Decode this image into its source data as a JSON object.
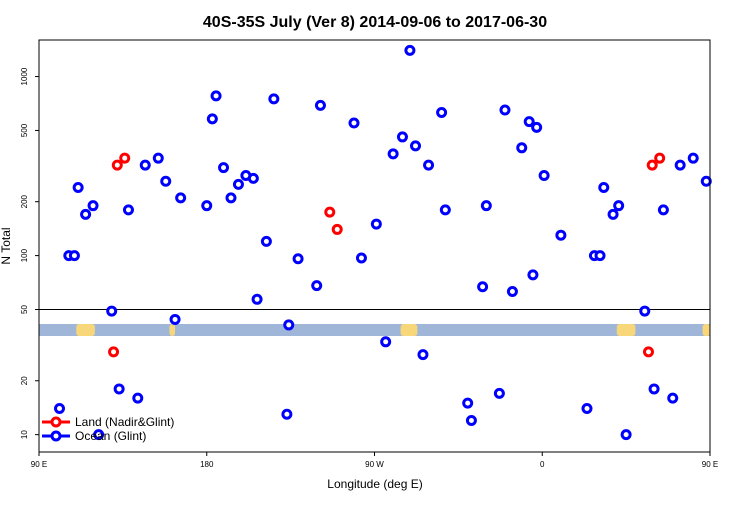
{
  "chart_data": {
    "type": "scatter",
    "title": "40S-35S July (Ver 8)   2014-09-06 to 2017-06-30",
    "xlabel": "Longitude (deg E)",
    "ylabel": "N Total",
    "xlim": [
      90,
      450
    ],
    "x_ticks": [
      {
        "value": 90,
        "label": "90 E"
      },
      {
        "value": 180,
        "label": "180"
      },
      {
        "value": 270,
        "label": "90 W"
      },
      {
        "value": 360,
        "label": "0"
      },
      {
        "value": 450,
        "label": "90 E"
      }
    ],
    "y_scale": "log",
    "y_ticks": [
      {
        "value": 10,
        "label": "10"
      },
      {
        "value": 20,
        "label": "20"
      },
      {
        "value": 50,
        "label": "50"
      },
      {
        "value": 100,
        "label": "100"
      },
      {
        "value": 200,
        "label": "200"
      },
      {
        "value": 500,
        "label": "500"
      },
      {
        "value": 1000,
        "label": "1000"
      }
    ],
    "threshold_line": 50,
    "grid": false,
    "legend_position": "bottom-left",
    "series": [
      {
        "name": "Land (Nadir&Glint)",
        "color": "#ff0000",
        "points": [
          {
            "x": 132,
            "y": 320
          },
          {
            "x": 136,
            "y": 350
          },
          {
            "x": 130,
            "y": 29
          },
          {
            "x": 246,
            "y": 175
          },
          {
            "x": 250,
            "y": 140
          },
          {
            "x": 419,
            "y": 320
          },
          {
            "x": 423,
            "y": 350
          },
          {
            "x": 417,
            "y": 29
          }
        ]
      },
      {
        "name": "Ocean (Glint)",
        "color": "#0000ff",
        "points": [
          {
            "x": 101,
            "y": 14
          },
          {
            "x": 106,
            "y": 100
          },
          {
            "x": 109,
            "y": 100
          },
          {
            "x": 111,
            "y": 240
          },
          {
            "x": 115,
            "y": 170
          },
          {
            "x": 119,
            "y": 190
          },
          {
            "x": 122,
            "y": 10
          },
          {
            "x": 129,
            "y": 49
          },
          {
            "x": 133,
            "y": 18
          },
          {
            "x": 138,
            "y": 180
          },
          {
            "x": 143,
            "y": 16
          },
          {
            "x": 147,
            "y": 320
          },
          {
            "x": 154,
            "y": 350
          },
          {
            "x": 158,
            "y": 260
          },
          {
            "x": 163,
            "y": 44
          },
          {
            "x": 166,
            "y": 210
          },
          {
            "x": 180,
            "y": 190
          },
          {
            "x": 183,
            "y": 580
          },
          {
            "x": 185,
            "y": 780
          },
          {
            "x": 189,
            "y": 310
          },
          {
            "x": 193,
            "y": 210
          },
          {
            "x": 197,
            "y": 250
          },
          {
            "x": 201,
            "y": 280
          },
          {
            "x": 205,
            "y": 270
          },
          {
            "x": 207,
            "y": 57
          },
          {
            "x": 212,
            "y": 120
          },
          {
            "x": 216,
            "y": 750
          },
          {
            "x": 223,
            "y": 13
          },
          {
            "x": 224,
            "y": 41
          },
          {
            "x": 229,
            "y": 96
          },
          {
            "x": 239,
            "y": 68
          },
          {
            "x": 241,
            "y": 690
          },
          {
            "x": 259,
            "y": 550
          },
          {
            "x": 263,
            "y": 97
          },
          {
            "x": 271,
            "y": 150
          },
          {
            "x": 276,
            "y": 33
          },
          {
            "x": 280,
            "y": 370
          },
          {
            "x": 285,
            "y": 460
          },
          {
            "x": 289,
            "y": 1400
          },
          {
            "x": 292,
            "y": 410
          },
          {
            "x": 296,
            "y": 28
          },
          {
            "x": 299,
            "y": 320
          },
          {
            "x": 306,
            "y": 630
          },
          {
            "x": 308,
            "y": 180
          },
          {
            "x": 320,
            "y": 15
          },
          {
            "x": 322,
            "y": 12
          },
          {
            "x": 328,
            "y": 67
          },
          {
            "x": 330,
            "y": 190
          },
          {
            "x": 337,
            "y": 17
          },
          {
            "x": 340,
            "y": 650
          },
          {
            "x": 344,
            "y": 63
          },
          {
            "x": 349,
            "y": 400
          },
          {
            "x": 353,
            "y": 560
          },
          {
            "x": 355,
            "y": 78
          },
          {
            "x": 357,
            "y": 520
          },
          {
            "x": 361,
            "y": 280
          },
          {
            "x": 370,
            "y": 130
          },
          {
            "x": 384,
            "y": 14
          },
          {
            "x": 388,
            "y": 100
          },
          {
            "x": 391,
            "y": 100
          },
          {
            "x": 393,
            "y": 240
          },
          {
            "x": 398,
            "y": 170
          },
          {
            "x": 401,
            "y": 190
          },
          {
            "x": 405,
            "y": 10
          },
          {
            "x": 415,
            "y": 49
          },
          {
            "x": 420,
            "y": 18
          },
          {
            "x": 425,
            "y": 180
          },
          {
            "x": 430,
            "y": 16
          },
          {
            "x": 434,
            "y": 320
          },
          {
            "x": 441,
            "y": 350
          },
          {
            "x": 448,
            "y": 260
          }
        ]
      }
    ]
  }
}
